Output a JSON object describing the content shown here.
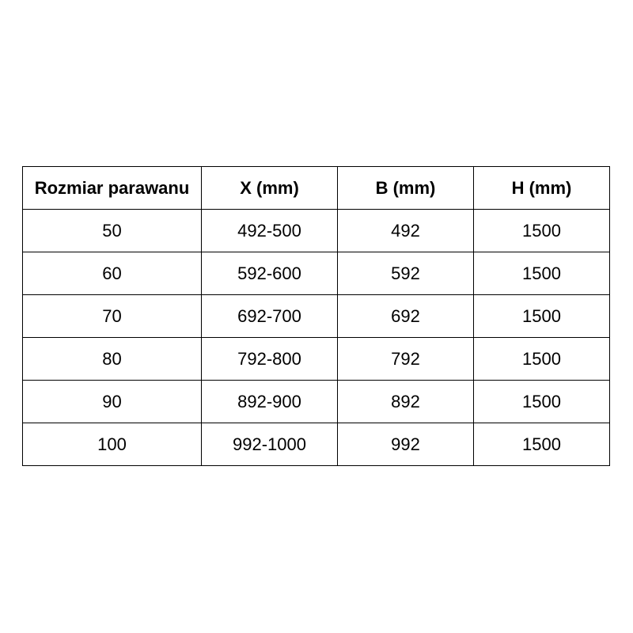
{
  "table": {
    "headers": [
      "Rozmiar parawanu",
      "X (mm)",
      "B (mm)",
      "H (mm)"
    ],
    "rows": [
      [
        "50",
        "492-500",
        "492",
        "1500"
      ],
      [
        "60",
        "592-600",
        "592",
        "1500"
      ],
      [
        "70",
        "692-700",
        "692",
        "1500"
      ],
      [
        "80",
        "792-800",
        "792",
        "1500"
      ],
      [
        "90",
        "892-900",
        "892",
        "1500"
      ],
      [
        "100",
        "992-1000",
        "992",
        "1500"
      ]
    ]
  }
}
